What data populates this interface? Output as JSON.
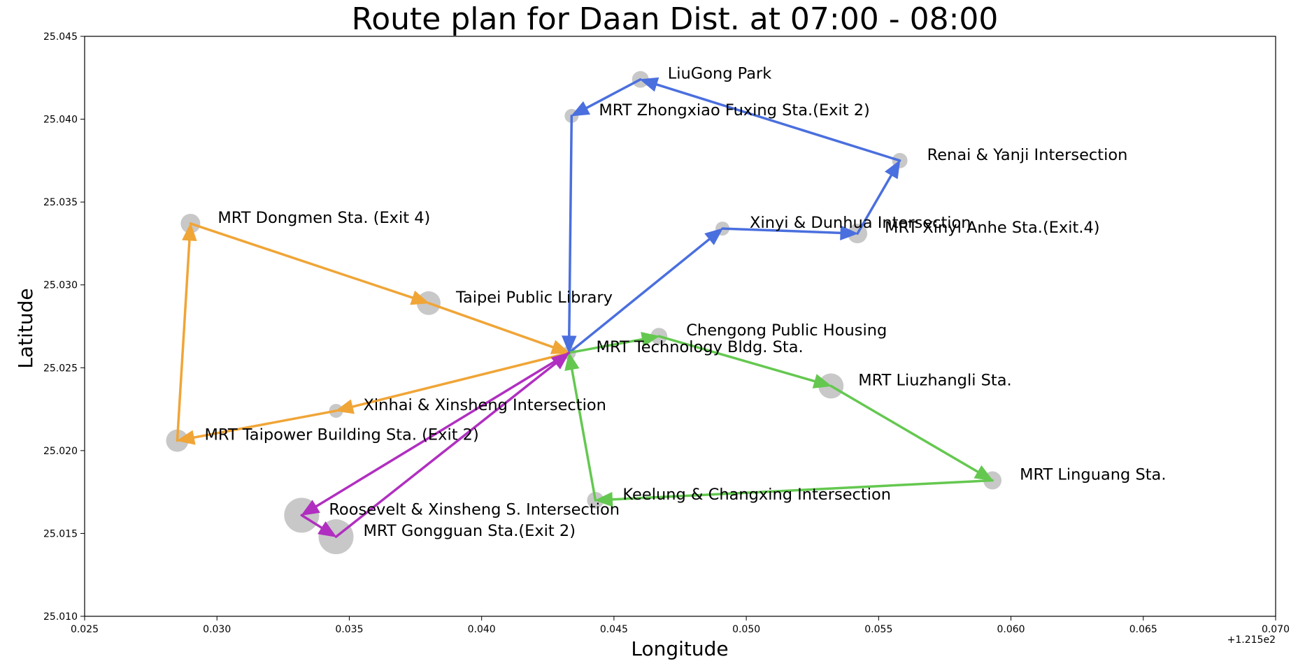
{
  "chart_data": {
    "type": "scatter",
    "title": "Route plan for Daan Dist. at 07:00 - 08:00",
    "xlabel": "Longitude",
    "ylabel": "Latitude",
    "x_offset_label": "+1.215e2",
    "x_offset": 121.5,
    "xlim": [
      0.025,
      0.07
    ],
    "ylim": [
      25.01,
      25.045
    ],
    "x_ticks": [
      0.025,
      0.03,
      0.035,
      0.04,
      0.045,
      0.05,
      0.055,
      0.06,
      0.065,
      0.07
    ],
    "x_tick_labels": [
      "0.025",
      "0.030",
      "0.035",
      "0.040",
      "0.045",
      "0.050",
      "0.055",
      "0.060",
      "0.065",
      "0.070"
    ],
    "y_ticks": [
      25.01,
      25.015,
      25.02,
      25.025,
      25.03,
      25.035,
      25.04,
      25.045
    ],
    "y_tick_labels": [
      "25.010",
      "25.015",
      "25.020",
      "25.025",
      "25.030",
      "25.035",
      "25.040",
      "25.045"
    ],
    "grid": false,
    "point_color": "#c8c8c8",
    "stations": [
      {
        "name": "LiuGong Park",
        "x": 0.046,
        "y": 25.0424,
        "size": 12
      },
      {
        "name": "MRT Zhongxiao Fuxing Sta.(Exit 2)",
        "x": 0.0434,
        "y": 25.0402,
        "size": 10
      },
      {
        "name": "Renai & Yanji Intersection",
        "x": 0.0558,
        "y": 25.0375,
        "size": 11
      },
      {
        "name": "MRT Dongmen Sta. (Exit 4)",
        "x": 0.029,
        "y": 25.0337,
        "size": 14
      },
      {
        "name": "Xinyi & Dunhua Intersection",
        "x": 0.0491,
        "y": 25.0334,
        "size": 10
      },
      {
        "name": "MRT Xinyi Anhe Sta.(Exit.4)",
        "x": 0.0542,
        "y": 25.0331,
        "size": 14
      },
      {
        "name": "Taipei Public Library",
        "x": 0.038,
        "y": 25.0289,
        "size": 17
      },
      {
        "name": "Chengong Public Housing",
        "x": 0.0467,
        "y": 25.0269,
        "size": 12
      },
      {
        "name": "MRT Technology Bldg. Sta.",
        "x": 0.0433,
        "y": 25.0259,
        "size": 10
      },
      {
        "name": "MRT Liuzhangli Sta.",
        "x": 0.0532,
        "y": 25.0239,
        "size": 18
      },
      {
        "name": "Xinhai & Xinsheng Intersection",
        "x": 0.0345,
        "y": 25.0224,
        "size": 10
      },
      {
        "name": "MRT Taipower Building Sta. (Exit 2)",
        "x": 0.0285,
        "y": 25.0206,
        "size": 16
      },
      {
        "name": "MRT Linguang Sta.",
        "x": 0.0593,
        "y": 25.0182,
        "size": 13
      },
      {
        "name": "Keelung & Changxing Intersection",
        "x": 0.0443,
        "y": 25.017,
        "size": 12
      },
      {
        "name": "Roosevelt & Xinsheng S. Intersection",
        "x": 0.0332,
        "y": 25.0161,
        "size": 25
      },
      {
        "name": "MRT Gongguan Sta.(Exit 2)",
        "x": 0.0345,
        "y": 25.0148,
        "size": 25
      }
    ],
    "routes": [
      {
        "color": "#4a6fde",
        "points": [
          [
            0.0433,
            25.0259
          ],
          [
            0.0491,
            25.0334
          ],
          [
            0.0542,
            25.0331
          ],
          [
            0.0558,
            25.0375
          ],
          [
            0.046,
            25.0424
          ],
          [
            0.0434,
            25.0402
          ],
          [
            0.0433,
            25.0259
          ]
        ]
      },
      {
        "color": "#f0a537",
        "points": [
          [
            0.0433,
            25.0259
          ],
          [
            0.0345,
            25.0224
          ],
          [
            0.0285,
            25.0206
          ],
          [
            0.029,
            25.0337
          ],
          [
            0.038,
            25.0289
          ],
          [
            0.0433,
            25.0259
          ]
        ]
      },
      {
        "color": "#64c850",
        "points": [
          [
            0.0433,
            25.0259
          ],
          [
            0.0467,
            25.0269
          ],
          [
            0.0532,
            25.0239
          ],
          [
            0.0593,
            25.0182
          ],
          [
            0.0443,
            25.017
          ],
          [
            0.0433,
            25.0259
          ]
        ]
      },
      {
        "color": "#b02fc0",
        "points": [
          [
            0.0433,
            25.0259
          ],
          [
            0.0332,
            25.0161
          ],
          [
            0.0345,
            25.0148
          ],
          [
            0.0433,
            25.0259
          ]
        ]
      }
    ]
  }
}
